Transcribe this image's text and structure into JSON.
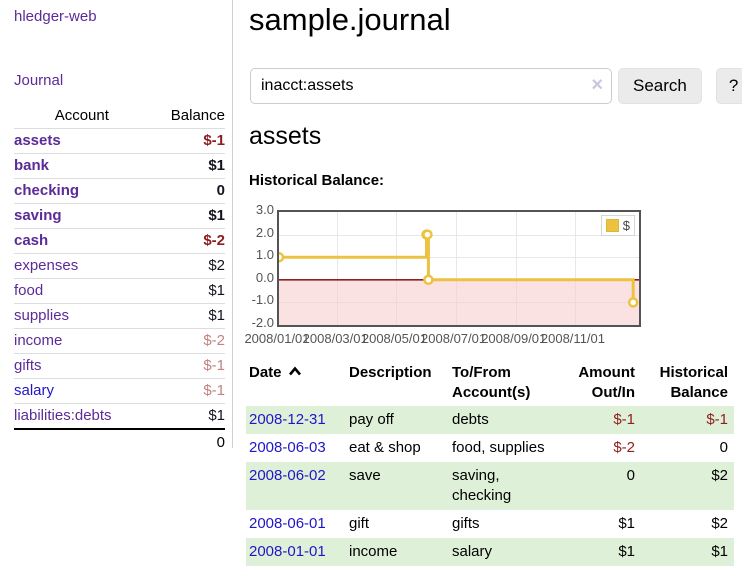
{
  "app": {
    "brand": "hledger-web",
    "nav_journal": "Journal"
  },
  "sidebar": {
    "headers": {
      "account": "Account",
      "balance": "Balance"
    },
    "rows": [
      {
        "account": "assets",
        "balance": "$-1",
        "indent": 1,
        "bold": true,
        "neg": "strong"
      },
      {
        "account": "bank",
        "balance": "$1",
        "indent": 2,
        "bold": true
      },
      {
        "account": "checking",
        "balance": "0",
        "indent": 3,
        "bold": true
      },
      {
        "account": "saving",
        "balance": "$1",
        "indent": 3,
        "bold": true
      },
      {
        "account": "cash",
        "balance": "$-2",
        "indent": 2,
        "bold": true,
        "neg": "strong"
      },
      {
        "account": "expenses",
        "balance": "$2",
        "indent": 1
      },
      {
        "account": "food",
        "balance": "$1",
        "indent": 2
      },
      {
        "account": "supplies",
        "balance": "$1",
        "indent": 2
      },
      {
        "account": "income",
        "balance": "$-2",
        "indent": 1,
        "neg": "soft"
      },
      {
        "account": "gifts",
        "balance": "$-1",
        "indent": 2,
        "neg": "soft"
      },
      {
        "account": "salary",
        "balance": "$-1",
        "indent": 2,
        "neg": "soft",
        "link_blue": true
      },
      {
        "account": "liabilities:debts",
        "balance": "$1",
        "indent": 1
      }
    ],
    "total": "0"
  },
  "header": {
    "title": "sample.journal"
  },
  "search": {
    "value": "inacct:assets",
    "clear_icon": "×",
    "button_label": "Search",
    "help_label": "?"
  },
  "account_page": {
    "heading": "assets",
    "chart_label": "Historical Balance:"
  },
  "chart_data": {
    "type": "line",
    "title": "Historical Balance:",
    "legend": "$",
    "legend_position": "top-right",
    "grid": true,
    "ylim": [
      -2.0,
      3.0
    ],
    "yticks": [
      "3.0",
      "2.0",
      "1.0",
      "0.0",
      "-1.0",
      "-2.0"
    ],
    "xticks": [
      "2008/01/01",
      "2008/03/01",
      "2008/05/01",
      "2008/07/01",
      "2008/09/01",
      "2008/11/01"
    ],
    "series": [
      {
        "name": "$",
        "step": true,
        "color": "#edc240",
        "points": [
          {
            "x": "2008-01-01",
            "y": 1
          },
          {
            "x": "2008-06-01",
            "y": 2
          },
          {
            "x": "2008-06-02",
            "y": 2
          },
          {
            "x": "2008-06-03",
            "y": 0
          },
          {
            "x": "2008-12-31",
            "y": -1
          }
        ]
      }
    ],
    "negative_region_fill": "#f7caca",
    "zero_line_color": "#8d2020"
  },
  "register": {
    "headers": {
      "date": "Date",
      "description": "Description",
      "accounts": "To/From Account(s)",
      "amount": "Amount Out/In",
      "balance": "Historical Balance"
    },
    "rows": [
      {
        "date": "2008-12-31",
        "description": "pay off",
        "accounts": "debts",
        "amount": "$-1",
        "balance": "$-1",
        "amount_neg": true,
        "balance_neg": true,
        "green": true
      },
      {
        "date": "2008-06-03",
        "description": "eat & shop",
        "accounts": "food, supplies",
        "amount": "$-2",
        "balance": "0",
        "amount_neg": true
      },
      {
        "date": "2008-06-02",
        "description": "save",
        "accounts": "saving, checking",
        "amount": "0",
        "balance": "$2",
        "green": true
      },
      {
        "date": "2008-06-01",
        "description": "gift",
        "accounts": "gifts",
        "amount": "$1",
        "balance": "$2"
      },
      {
        "date": "2008-01-01",
        "description": "income",
        "accounts": "salary",
        "amount": "$1",
        "balance": "$1",
        "green": true
      }
    ]
  },
  "colors": {
    "link_purple": "#5c2b97",
    "link_blue": "#2016c8",
    "negative_strong": "#8f1d1d",
    "negative_soft": "#c28282",
    "row_green": "#dff0d8",
    "chart_line": "#edc240",
    "chart_negative_fill": "#f7caca",
    "chart_zero_line": "#8d2020",
    "chart_border": "#545454",
    "button_gray": "#ebebeb"
  }
}
